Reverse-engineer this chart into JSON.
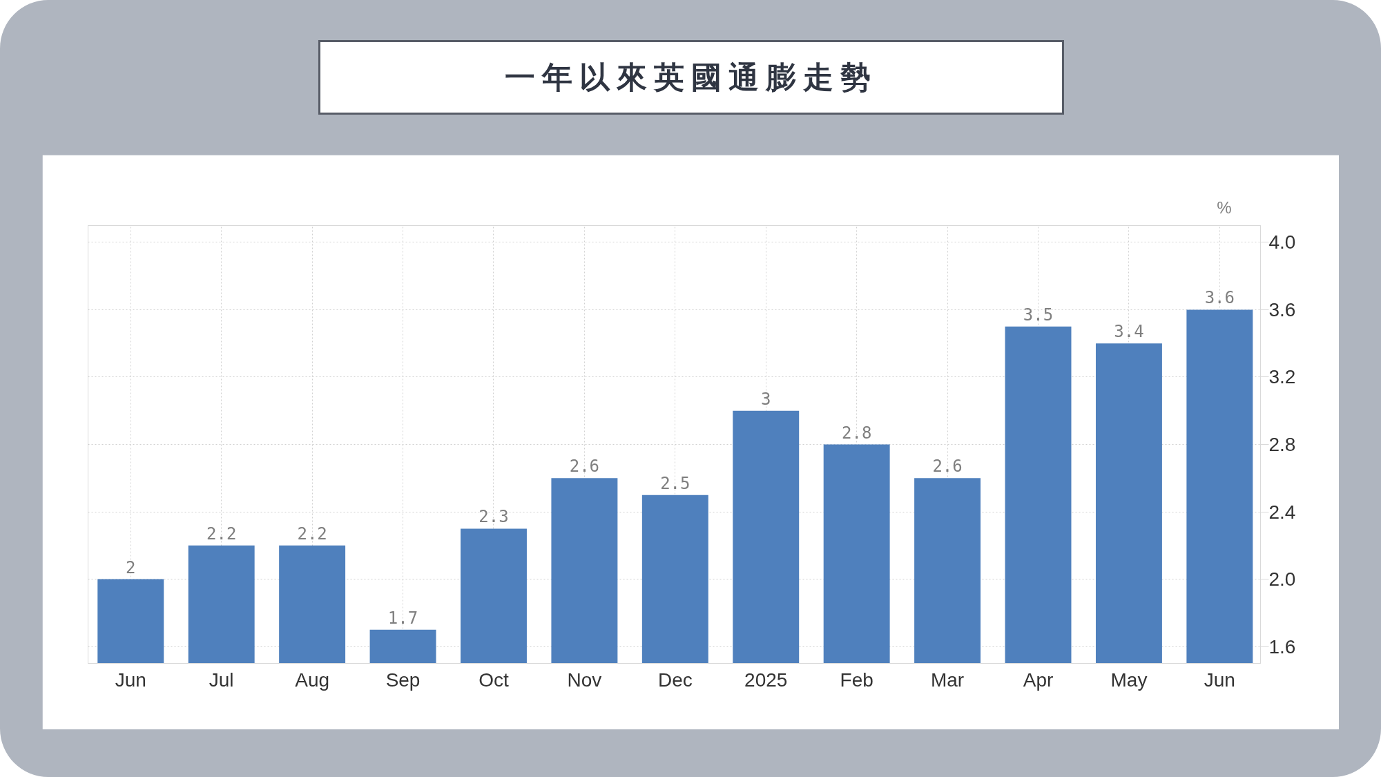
{
  "chart_data": {
    "type": "bar",
    "title": "一年以來英國通膨走勢",
    "ylabel": "%",
    "categories": [
      "Jun",
      "Jul",
      "Aug",
      "Sep",
      "Oct",
      "Nov",
      "Dec",
      "2025",
      "Feb",
      "Mar",
      "Apr",
      "May",
      "Jun"
    ],
    "values": [
      2,
      2.2,
      2.2,
      1.7,
      2.3,
      2.6,
      2.5,
      3,
      2.8,
      2.6,
      3.5,
      3.4,
      3.6
    ],
    "color": "#4f80bd",
    "ylim": [
      1.5,
      4.1
    ],
    "yticks": [
      1.6,
      {
        "value": 2,
        "label": "2.0"
      },
      2.4,
      2.8,
      3.2,
      3.6,
      {
        "value": 4,
        "label": "4.0"
      }
    ],
    "grid": true,
    "data_labels": true
  }
}
